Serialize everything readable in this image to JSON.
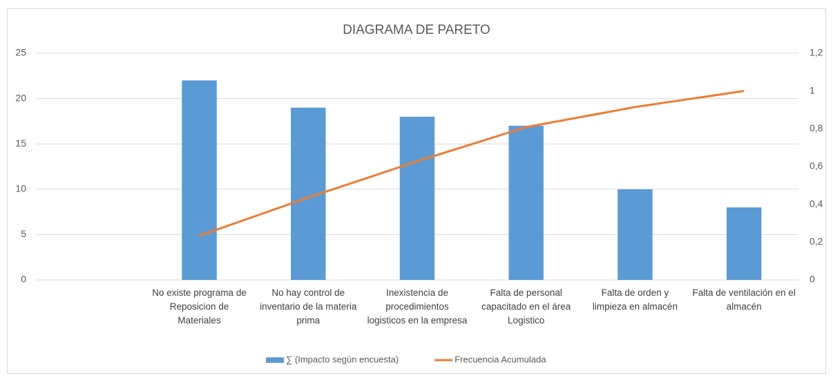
{
  "chart_data": {
    "type": "bar",
    "title": "DIAGRAMA DE PARETO",
    "categories": [
      null,
      "No existe programa de Reposicion de Materiales",
      "No hay control de inventario de la materia prima",
      "Inexistencia de procedimientos logisticos en la empresa",
      "Falta de personal capacitado en el área Logistico",
      "Falta de orden y limpieza en almacén",
      "Falta de ventilación en el almacén"
    ],
    "series": [
      {
        "name": "∑ (Impacto según encuesta)",
        "type": "bar",
        "color": "#5b9bd5",
        "values": [
          null,
          22,
          19,
          18,
          17,
          10,
          8
        ]
      },
      {
        "name": "Frecuencia Acumulada",
        "type": "line",
        "axis": "y2",
        "color": "#ed7d31",
        "values": [
          null,
          0.234,
          0.436,
          0.628,
          0.809,
          0.915,
          1
        ]
      }
    ],
    "ylim": [
      0,
      25
    ],
    "yticks": [
      0,
      5,
      10,
      15,
      20,
      25
    ],
    "y2lim": [
      0,
      1.2
    ],
    "y2ticks": [
      0,
      {
        "value": 0.2,
        "label": "0,2"
      },
      {
        "value": 0.4,
        "label": "0,4"
      },
      {
        "value": 0.6,
        "label": "0,6"
      },
      {
        "value": 0.8,
        "label": "0,8"
      },
      1,
      {
        "value": 1.2,
        "label": "1,2"
      }
    ],
    "grid": true,
    "legend": "bottom"
  }
}
